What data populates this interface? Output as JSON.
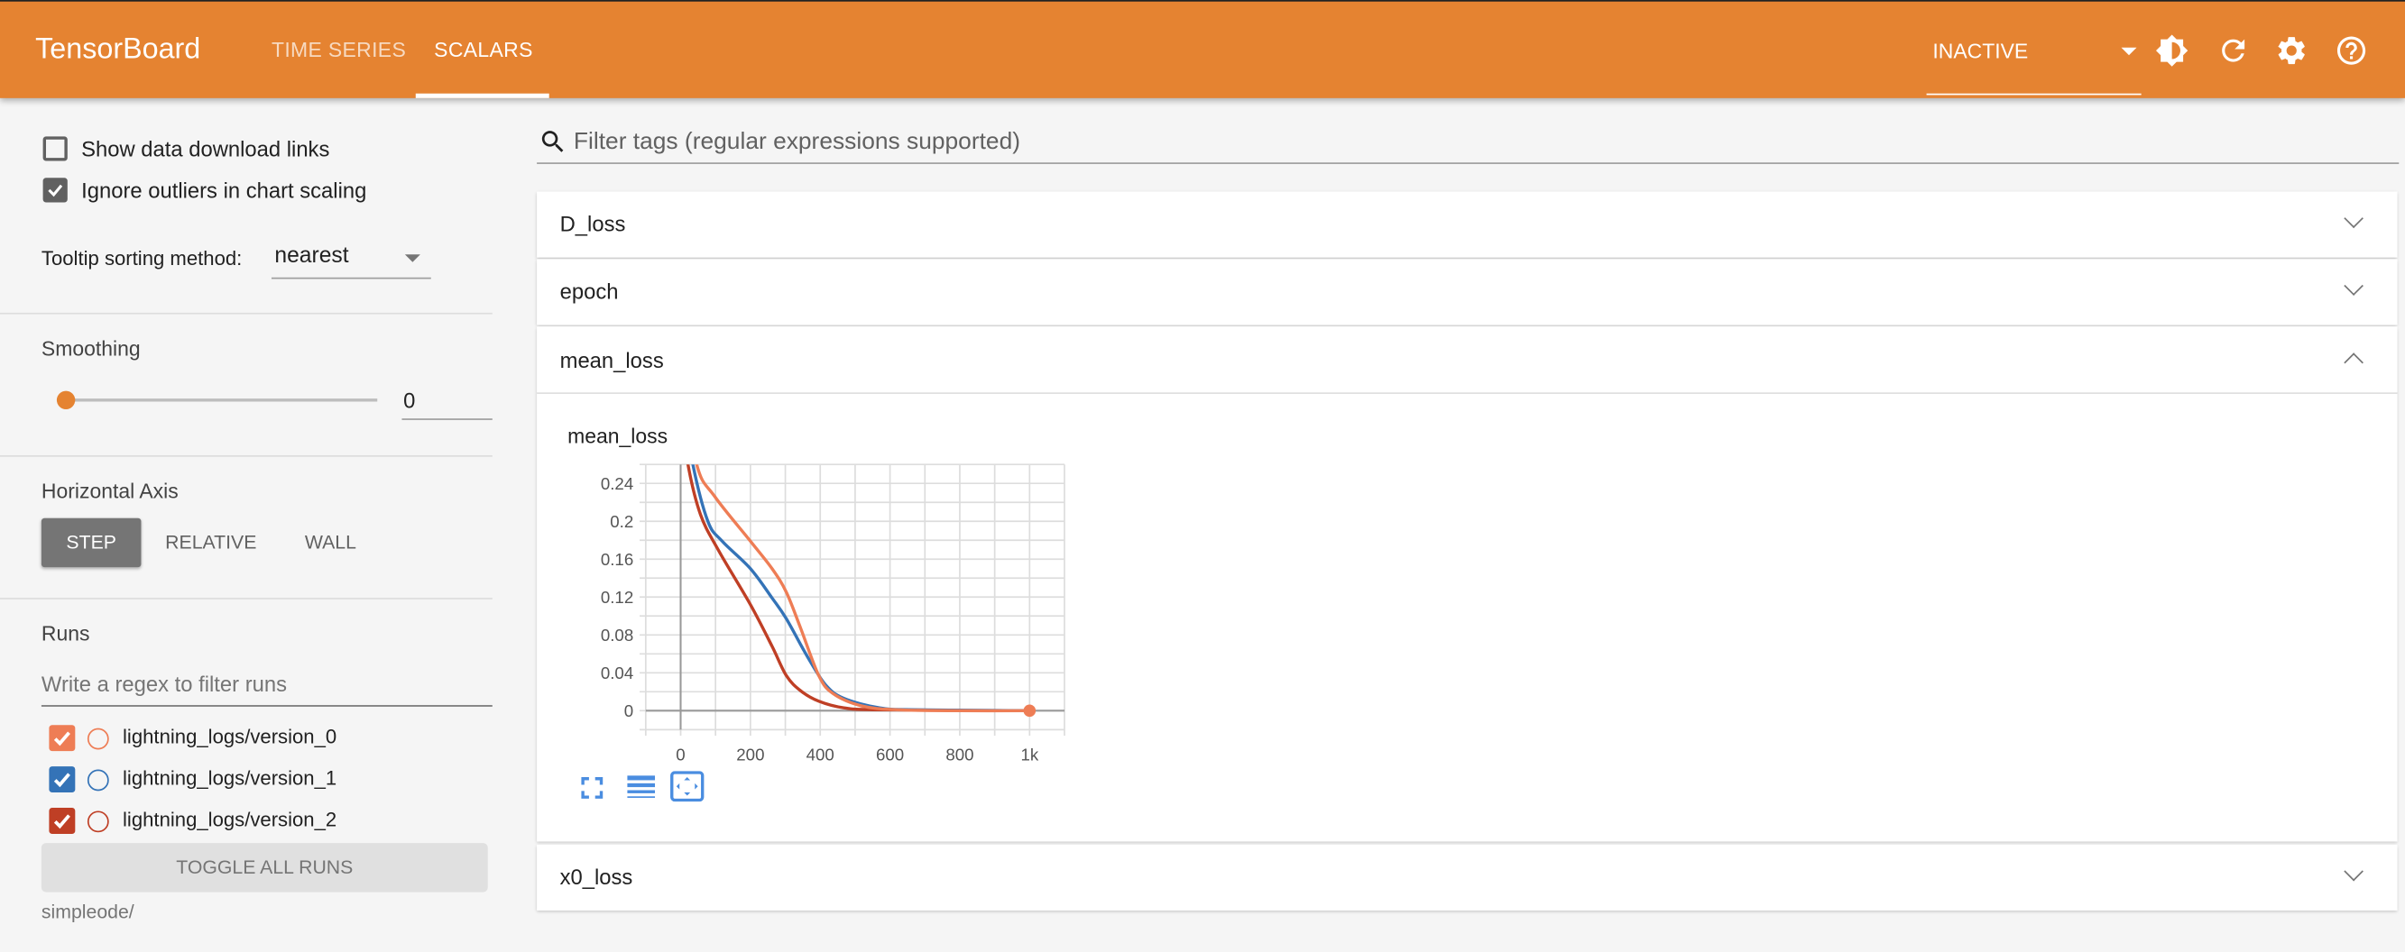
{
  "header": {
    "brand": "TensorBoard",
    "tabs": [
      {
        "label": "TIME SERIES",
        "active": false
      },
      {
        "label": "SCALARS",
        "active": true
      }
    ],
    "status_select": "INACTIVE",
    "icons": [
      "brightness-contrast-icon",
      "refresh-icon",
      "settings-gear-icon",
      "help-icon"
    ],
    "accent": "#e58331"
  },
  "sidebar": {
    "show_download_links": {
      "label": "Show data download links",
      "checked": false
    },
    "ignore_outliers": {
      "label": "Ignore outliers in chart scaling",
      "checked": true
    },
    "tooltip_sorting": {
      "label": "Tooltip sorting method:",
      "value": "nearest"
    },
    "smoothing": {
      "label": "Smoothing",
      "value": "0",
      "slider_fraction": 0
    },
    "horizontal_axis": {
      "label": "Horizontal Axis",
      "options": [
        "STEP",
        "RELATIVE",
        "WALL"
      ],
      "selected": "STEP"
    },
    "runs": {
      "label": "Runs",
      "filter_placeholder": "Write a regex to filter runs",
      "items": [
        {
          "name": "lightning_logs/version_0",
          "color": "#ee7d55",
          "checked": true
        },
        {
          "name": "lightning_logs/version_1",
          "color": "#3473b7",
          "checked": true
        },
        {
          "name": "lightning_logs/version_2",
          "color": "#bf3f25",
          "checked": true
        }
      ],
      "toggle_all": "TOGGLE ALL RUNS",
      "logdir": "simpleode/"
    }
  },
  "main": {
    "filter_placeholder": "Filter tags (regular expressions supported)",
    "cards": [
      {
        "title": "D_loss",
        "expanded": false
      },
      {
        "title": "epoch",
        "expanded": false
      },
      {
        "title": "mean_loss",
        "expanded": true
      },
      {
        "title": "x0_loss",
        "expanded": false
      }
    ],
    "chart_tools": [
      "fullscreen-icon",
      "toggle-log-scale-icon",
      "fit-domain-icon"
    ]
  },
  "chart_data": {
    "type": "line",
    "title": "mean_loss",
    "xlim": [
      -100,
      1100
    ],
    "ylim": [
      -0.02,
      0.26
    ],
    "x_ticks": [
      "0",
      "200",
      "400",
      "600",
      "800",
      "1k"
    ],
    "x_tick_values": [
      0,
      200,
      400,
      600,
      800,
      1000
    ],
    "y_ticks": [
      "0",
      "0.04",
      "0.08",
      "0.12",
      "0.16",
      "0.2",
      "0.24"
    ],
    "y_tick_values": [
      0,
      0.04,
      0.08,
      0.12,
      0.16,
      0.2,
      0.24
    ],
    "grid": true,
    "series": [
      {
        "name": "lightning_logs/version_0",
        "color": "#ee7d55",
        "x": [
          0,
          46,
          98,
          200,
          262,
          303,
          344,
          396,
          437,
          519,
          622,
          800,
          1000
        ],
        "y": [
          0.36,
          0.26,
          0.226,
          0.179,
          0.15,
          0.125,
          0.087,
          0.037,
          0.018,
          0.005,
          0.001,
          0.0,
          0.0
        ]
      },
      {
        "name": "lightning_logs/version_1",
        "color": "#3473b7",
        "x": [
          0,
          35,
          78,
          119,
          200,
          262,
          303,
          365,
          416,
          468,
          570,
          673,
          1000
        ],
        "y": [
          0.34,
          0.26,
          0.2,
          0.179,
          0.15,
          0.119,
          0.097,
          0.056,
          0.027,
          0.013,
          0.003,
          0.001,
          0.0
        ]
      },
      {
        "name": "lightning_logs/version_2",
        "color": "#bf3f25",
        "x": [
          0,
          21,
          57,
          109,
          200,
          262,
          303,
          344,
          396,
          468,
          570,
          1000
        ],
        "y": [
          0.32,
          0.26,
          0.207,
          0.169,
          0.112,
          0.068,
          0.037,
          0.021,
          0.01,
          0.003,
          0.001,
          0.0
        ]
      }
    ]
  }
}
